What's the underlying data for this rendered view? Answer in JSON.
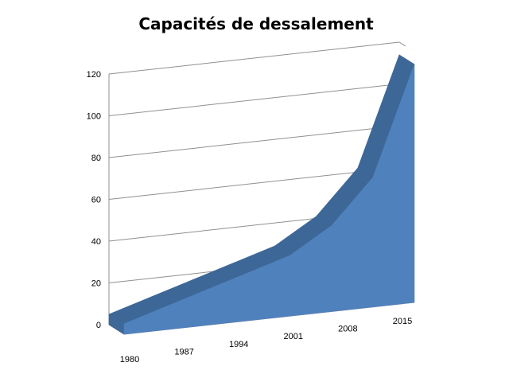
{
  "chart_data": {
    "type": "area",
    "title": "Capacités de dessalement",
    "xlabel": "",
    "ylabel": "",
    "categories": [
      "1980",
      "1987",
      "1994",
      "2001",
      "2008",
      "2015"
    ],
    "x": [
      1980,
      1985,
      1990,
      1995,
      2000,
      2005,
      2010,
      2015
    ],
    "series": [
      {
        "values": [
          5,
          11,
          17,
          23,
          29,
          41,
          62,
          114
        ]
      }
    ],
    "ylim": [
      0,
      120
    ],
    "yticks": [
      0,
      20,
      40,
      60,
      80,
      100,
      120
    ],
    "grid": true,
    "legend": "none",
    "series_color": "#4f81bd"
  }
}
